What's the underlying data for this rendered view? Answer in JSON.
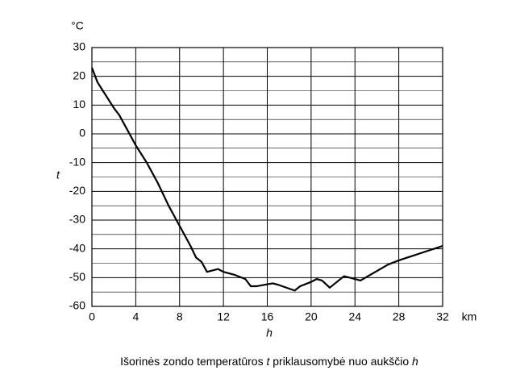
{
  "chart_data": {
    "type": "line",
    "y_unit": "°C",
    "x_unit": "km",
    "ylabel": "t",
    "xlabel": "h",
    "caption": [
      "Išorinės zondo temperatūros ",
      "t",
      " priklausomybė nuo aukščio ",
      "h"
    ],
    "x": [
      0,
      0.5,
      1,
      1.5,
      2,
      2.5,
      3,
      4,
      5,
      6,
      7,
      8,
      9,
      9.5,
      10,
      10.5,
      11,
      11.5,
      12,
      13,
      14,
      14.5,
      15,
      16.5,
      17,
      18.5,
      19,
      20,
      20.5,
      21,
      21.7,
      23,
      24,
      24.5,
      27,
      28,
      30,
      32
    ],
    "series": [
      {
        "color": "#000000",
        "values": [
          23,
          18,
          15,
          12,
          9,
          6.5,
          3,
          -4,
          -10,
          -17,
          -25,
          -32,
          -39,
          -43,
          -44.5,
          -48,
          -47.5,
          -47,
          -48,
          -49,
          -50.5,
          -53,
          -53,
          -52,
          -52.5,
          -54.5,
          -53,
          -51.5,
          -50.5,
          -51,
          -53.5,
          -49.5,
          -50.5,
          -51,
          -45.5,
          -44,
          -41.5,
          -39
        ]
      }
    ],
    "xlim": [
      0,
      32
    ],
    "xticks": [
      0,
      4,
      8,
      12,
      16,
      20,
      24,
      28,
      32
    ],
    "ylim": [
      -60,
      30
    ],
    "yticks": [
      -60,
      -50,
      -40,
      -30,
      -20,
      -10,
      0,
      10,
      20,
      30
    ],
    "y_minor_ticks": [
      -55,
      -45,
      -35,
      -25,
      -15,
      -5,
      5,
      15,
      25
    ],
    "grid": true
  }
}
